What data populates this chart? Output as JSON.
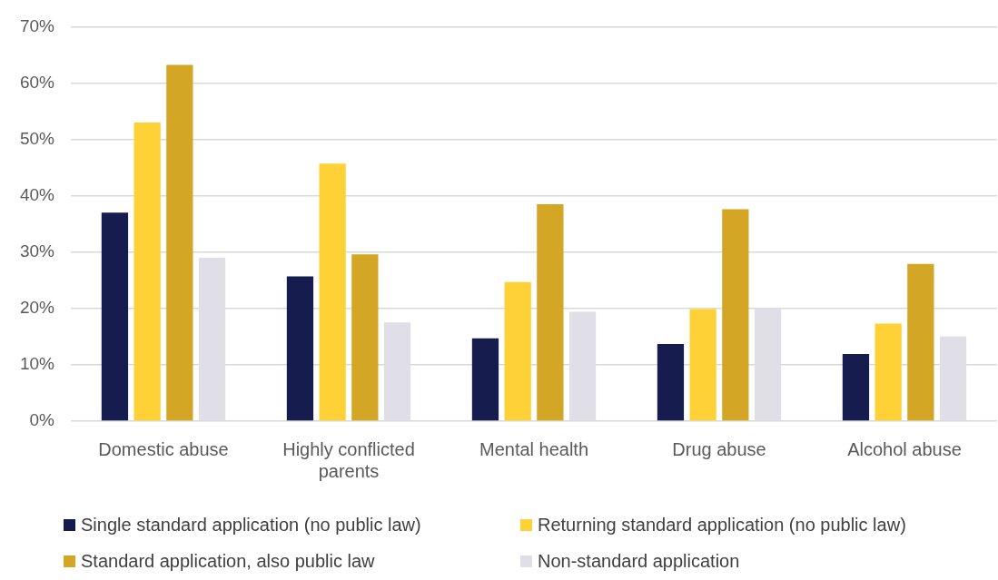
{
  "chart_data": {
    "type": "bar",
    "categories": [
      "Domestic abuse",
      "Highly conflicted parents",
      "Mental health",
      "Drug abuse",
      "Alcohol abuse"
    ],
    "series": [
      {
        "name": "Single standard application (no public law)",
        "color": "#161c4e",
        "values": [
          37,
          25.7,
          14.7,
          13.7,
          11.9
        ]
      },
      {
        "name": "Returning standard application (no public law)",
        "color": "#fed136",
        "values": [
          53,
          45.7,
          24.7,
          19.9,
          17.3
        ]
      },
      {
        "name": "Standard application, also public law",
        "color": "#d4a625",
        "values": [
          63.2,
          29.6,
          38.5,
          37.6,
          27.9
        ]
      },
      {
        "name": "Non-standard application",
        "color": "#e0dfe8",
        "values": [
          29,
          17.5,
          19.4,
          20,
          15
        ]
      }
    ],
    "ylim": [
      0,
      70
    ],
    "yticks": [
      {
        "value": 0,
        "label": "0%"
      },
      {
        "value": 10,
        "label": "10%"
      },
      {
        "value": 20,
        "label": "20%"
      },
      {
        "value": 30,
        "label": "30%"
      },
      {
        "value": 40,
        "label": "40%"
      },
      {
        "value": 50,
        "label": "50%"
      },
      {
        "value": 60,
        "label": "60%"
      },
      {
        "value": 70,
        "label": "70%"
      }
    ],
    "grid": "y",
    "legend": "bottom"
  }
}
